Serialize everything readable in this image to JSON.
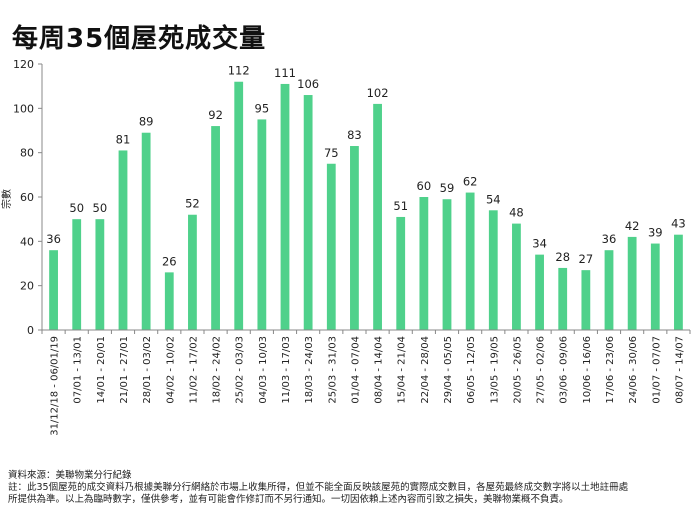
{
  "chart_data": {
    "type": "bar",
    "title": "每周35個屋苑成交量",
    "ylabel": "宗數",
    "xlabel": "",
    "ylim": [
      0,
      120
    ],
    "yticks": [
      0,
      20,
      40,
      60,
      80,
      100,
      120
    ],
    "grid": false,
    "bar_color": "#4fd18b",
    "categories": [
      "31/12/18 - 06/01/19",
      "07/01 - 13/01",
      "14/01 - 20/01",
      "21/01 - 27/01",
      "28/01 - 03/02",
      "04/02 - 10/02",
      "11/02 - 17/02",
      "18/02 - 24/02",
      "25/02 - 03/03",
      "04/03 - 10/03",
      "11/03 - 17/03",
      "18/03 - 24/03",
      "25/03 - 31/03",
      "01/04 - 07/04",
      "08/04 - 14/04",
      "15/04 - 21/04",
      "22/04 - 28/04",
      "29/04 - 05/05",
      "06/05 - 12/05",
      "13/05 - 19/05",
      "20/05 - 26/05",
      "27/05 - 02/06",
      "03/06 - 09/06",
      "10/06 - 16/06",
      "17/06 - 23/06",
      "24/06 - 30/06",
      "01/07 - 07/07",
      "08/07 - 14/07"
    ],
    "values": [
      36,
      50,
      50,
      81,
      89,
      26,
      52,
      92,
      112,
      95,
      111,
      106,
      75,
      83,
      102,
      51,
      60,
      59,
      62,
      54,
      48,
      34,
      28,
      27,
      36,
      42,
      39,
      43
    ]
  },
  "footnote": {
    "source": "資料來源：美聯物業分行紀錄",
    "note_line1": "註：此35個屋苑的成交資料乃根據美聯分行網絡於市場上收集所得，但並不能全面反映該屋苑的實際成交數目，各屋苑最終成交數字將以土地註冊處",
    "note_line2": "所提供為準。以上為臨時數字，僅供參考，並有可能會作修訂而不另行通知。一切因依賴上述內容而引致之損失，美聯物業概不負責。"
  }
}
